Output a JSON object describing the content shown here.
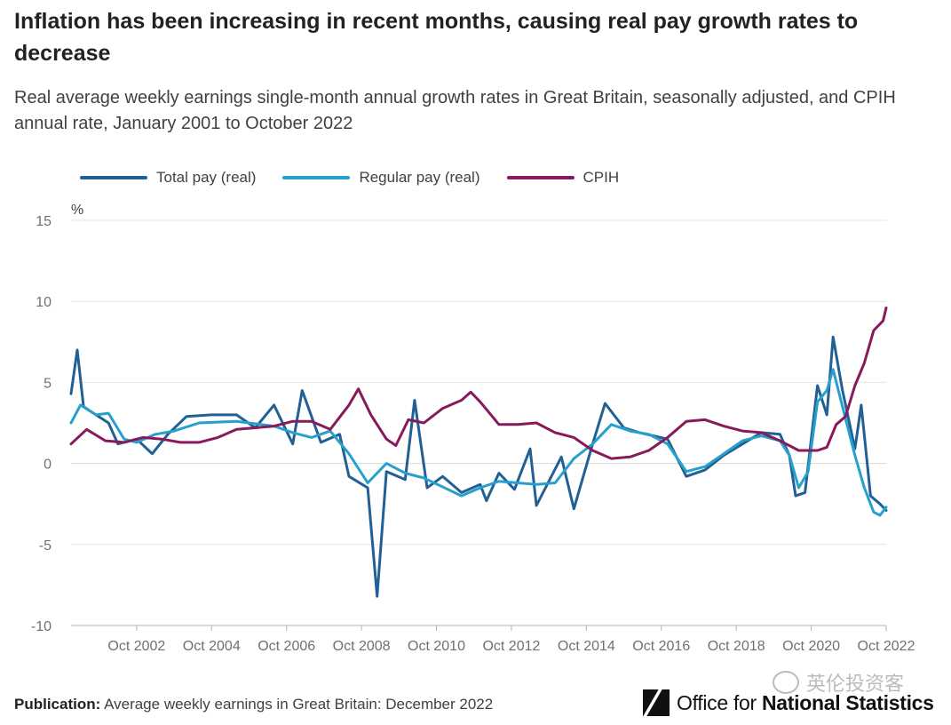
{
  "header": {
    "title": "Inflation has been increasing in recent months, causing real pay growth rates to decrease",
    "subtitle": "Real average weekly earnings single-month annual growth rates in Great Britain, seasonally adjusted, and CPIH annual rate, January 2001 to October 2022"
  },
  "legend": [
    {
      "label": "Total pay (real)",
      "color": "#206095"
    },
    {
      "label": "Regular pay (real)",
      "color": "#27a0cc"
    },
    {
      "label": "CPIH",
      "color": "#871a5b"
    }
  ],
  "footer": {
    "publication_label": "Publication:",
    "publication_text": "Average weekly earnings in Great Britain: December 2022"
  },
  "logo": {
    "text_light": "Office for ",
    "text_bold": "National Statistics"
  },
  "watermark": {
    "text": "英伦投资客"
  },
  "chart_data": {
    "type": "line",
    "ylabel": "%",
    "ylim": [
      -10,
      15
    ],
    "yticks": [
      15,
      10,
      5,
      0,
      -5,
      -10
    ],
    "x_start": "2001-01",
    "x_end": "2022-10",
    "xticks": [
      "Oct 2002",
      "Oct 2004",
      "Oct 2006",
      "Oct 2008",
      "Oct 2010",
      "Oct 2012",
      "Oct 2014",
      "Oct 2016",
      "Oct 2018",
      "Oct 2020",
      "Oct 2022"
    ],
    "grid": true,
    "series": [
      {
        "name": "Total pay (real)",
        "color": "#206095",
        "points": [
          [
            "2001-01",
            4.3
          ],
          [
            "2001-03",
            7.0
          ],
          [
            "2001-05",
            3.5
          ],
          [
            "2001-09",
            3.0
          ],
          [
            "2002-01",
            2.5
          ],
          [
            "2002-04",
            1.2
          ],
          [
            "2002-10",
            1.5
          ],
          [
            "2003-03",
            0.6
          ],
          [
            "2003-08",
            1.8
          ],
          [
            "2004-02",
            2.9
          ],
          [
            "2004-10",
            3.0
          ],
          [
            "2005-06",
            3.0
          ],
          [
            "2005-12",
            2.2
          ],
          [
            "2006-06",
            3.6
          ],
          [
            "2006-12",
            1.2
          ],
          [
            "2007-03",
            4.5
          ],
          [
            "2007-09",
            1.3
          ],
          [
            "2008-03",
            1.8
          ],
          [
            "2008-06",
            -0.8
          ],
          [
            "2008-12",
            -1.5
          ],
          [
            "2009-03",
            -8.2
          ],
          [
            "2009-06",
            -0.5
          ],
          [
            "2009-12",
            -1.0
          ],
          [
            "2010-03",
            3.9
          ],
          [
            "2010-07",
            -1.5
          ],
          [
            "2010-12",
            -0.8
          ],
          [
            "2011-06",
            -1.8
          ],
          [
            "2011-12",
            -1.3
          ],
          [
            "2012-02",
            -2.3
          ],
          [
            "2012-06",
            -0.6
          ],
          [
            "2012-11",
            -1.6
          ],
          [
            "2013-04",
            0.9
          ],
          [
            "2013-06",
            -2.6
          ],
          [
            "2013-10",
            -1.1
          ],
          [
            "2014-02",
            0.4
          ],
          [
            "2014-06",
            -2.8
          ],
          [
            "2014-12",
            1.2
          ],
          [
            "2015-04",
            3.7
          ],
          [
            "2015-10",
            2.2
          ],
          [
            "2016-03",
            1.9
          ],
          [
            "2016-12",
            1.5
          ],
          [
            "2017-06",
            -0.8
          ],
          [
            "2017-12",
            -0.4
          ],
          [
            "2018-06",
            0.5
          ],
          [
            "2018-12",
            1.2
          ],
          [
            "2019-06",
            1.9
          ],
          [
            "2019-12",
            1.8
          ],
          [
            "2020-03",
            0.5
          ],
          [
            "2020-05",
            -2.0
          ],
          [
            "2020-08",
            -1.8
          ],
          [
            "2020-12",
            4.8
          ],
          [
            "2021-03",
            3.0
          ],
          [
            "2021-05",
            7.8
          ],
          [
            "2021-08",
            4.5
          ],
          [
            "2021-12",
            0.9
          ],
          [
            "2022-02",
            3.6
          ],
          [
            "2022-05",
            -2.0
          ],
          [
            "2022-08",
            -2.5
          ],
          [
            "2022-10",
            -2.9
          ]
        ]
      },
      {
        "name": "Regular pay (real)",
        "color": "#27a0cc",
        "points": [
          [
            "2001-01",
            2.5
          ],
          [
            "2001-04",
            3.6
          ],
          [
            "2001-09",
            3.0
          ],
          [
            "2002-01",
            3.1
          ],
          [
            "2002-06",
            1.5
          ],
          [
            "2002-10",
            1.3
          ],
          [
            "2003-04",
            1.8
          ],
          [
            "2003-10",
            2.0
          ],
          [
            "2004-06",
            2.5
          ],
          [
            "2005-06",
            2.6
          ],
          [
            "2006-06",
            2.3
          ],
          [
            "2006-12",
            1.9
          ],
          [
            "2007-06",
            1.6
          ],
          [
            "2007-12",
            2.0
          ],
          [
            "2008-06",
            0.6
          ],
          [
            "2008-12",
            -1.2
          ],
          [
            "2009-06",
            0.0
          ],
          [
            "2009-12",
            -0.6
          ],
          [
            "2010-06",
            -0.9
          ],
          [
            "2011-06",
            -2.0
          ],
          [
            "2011-12",
            -1.5
          ],
          [
            "2012-06",
            -1.1
          ],
          [
            "2012-12",
            -1.2
          ],
          [
            "2013-06",
            -1.3
          ],
          [
            "2013-12",
            -1.2
          ],
          [
            "2014-06",
            0.3
          ],
          [
            "2014-12",
            1.2
          ],
          [
            "2015-06",
            2.4
          ],
          [
            "2015-12",
            2.0
          ],
          [
            "2016-06",
            1.8
          ],
          [
            "2016-12",
            1.2
          ],
          [
            "2017-06",
            -0.5
          ],
          [
            "2017-12",
            -0.2
          ],
          [
            "2018-06",
            0.6
          ],
          [
            "2018-12",
            1.4
          ],
          [
            "2019-06",
            1.7
          ],
          [
            "2019-12",
            1.4
          ],
          [
            "2020-03",
            0.5
          ],
          [
            "2020-06",
            -1.5
          ],
          [
            "2020-09",
            -0.5
          ],
          [
            "2020-12",
            3.8
          ],
          [
            "2021-03",
            4.5
          ],
          [
            "2021-05",
            5.8
          ],
          [
            "2021-08",
            3.5
          ],
          [
            "2021-12",
            0.5
          ],
          [
            "2022-03",
            -1.5
          ],
          [
            "2022-06",
            -3.0
          ],
          [
            "2022-08",
            -3.2
          ],
          [
            "2022-10",
            -2.7
          ]
        ]
      },
      {
        "name": "CPIH",
        "color": "#871a5b",
        "points": [
          [
            "2001-01",
            1.2
          ],
          [
            "2001-06",
            2.1
          ],
          [
            "2001-12",
            1.4
          ],
          [
            "2002-06",
            1.3
          ],
          [
            "2002-12",
            1.6
          ],
          [
            "2003-06",
            1.5
          ],
          [
            "2003-12",
            1.3
          ],
          [
            "2004-06",
            1.3
          ],
          [
            "2004-12",
            1.6
          ],
          [
            "2005-06",
            2.1
          ],
          [
            "2005-12",
            2.2
          ],
          [
            "2006-06",
            2.3
          ],
          [
            "2006-12",
            2.6
          ],
          [
            "2007-06",
            2.6
          ],
          [
            "2007-12",
            2.1
          ],
          [
            "2008-06",
            3.6
          ],
          [
            "2008-09",
            4.6
          ],
          [
            "2009-01",
            3.0
          ],
          [
            "2009-06",
            1.5
          ],
          [
            "2009-09",
            1.1
          ],
          [
            "2010-01",
            2.7
          ],
          [
            "2010-06",
            2.5
          ],
          [
            "2010-12",
            3.4
          ],
          [
            "2011-06",
            3.9
          ],
          [
            "2011-09",
            4.4
          ],
          [
            "2011-12",
            3.8
          ],
          [
            "2012-06",
            2.4
          ],
          [
            "2012-12",
            2.4
          ],
          [
            "2013-06",
            2.5
          ],
          [
            "2013-12",
            1.9
          ],
          [
            "2014-06",
            1.6
          ],
          [
            "2014-12",
            0.8
          ],
          [
            "2015-06",
            0.3
          ],
          [
            "2015-12",
            0.4
          ],
          [
            "2016-06",
            0.8
          ],
          [
            "2016-12",
            1.6
          ],
          [
            "2017-06",
            2.6
          ],
          [
            "2017-12",
            2.7
          ],
          [
            "2018-06",
            2.3
          ],
          [
            "2018-12",
            2.0
          ],
          [
            "2019-06",
            1.9
          ],
          [
            "2019-12",
            1.4
          ],
          [
            "2020-06",
            0.8
          ],
          [
            "2020-12",
            0.8
          ],
          [
            "2021-03",
            1.0
          ],
          [
            "2021-06",
            2.4
          ],
          [
            "2021-09",
            2.9
          ],
          [
            "2021-12",
            4.8
          ],
          [
            "2022-03",
            6.2
          ],
          [
            "2022-06",
            8.2
          ],
          [
            "2022-09",
            8.8
          ],
          [
            "2022-10",
            9.6
          ]
        ]
      }
    ]
  }
}
